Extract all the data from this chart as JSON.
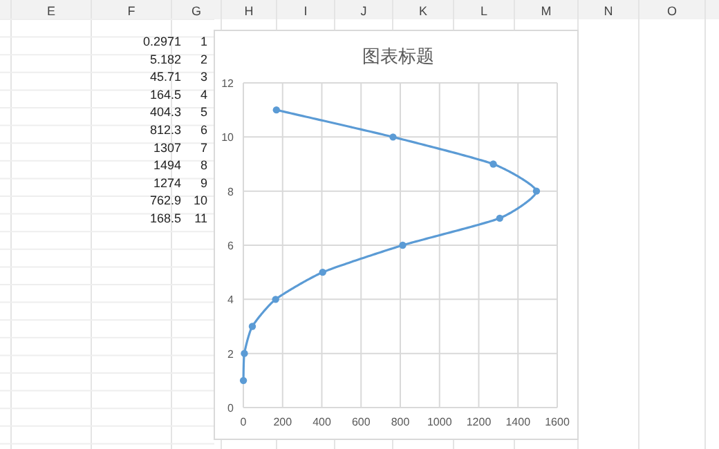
{
  "chart_data": {
    "type": "line",
    "title": "图表标题",
    "x": [
      0.2971,
      5.182,
      45.71,
      164.5,
      404.3,
      812.3,
      1307,
      1494,
      1274,
      762.9,
      168.5
    ],
    "series": [
      {
        "color": "#5b9bd5",
        "values": [
          1,
          2,
          3,
          4,
          5,
          6,
          7,
          8,
          9,
          10,
          11
        ]
      }
    ],
    "marker": "circle",
    "line_style": "solid",
    "xlim": [
      0,
      1600
    ],
    "xticks": [
      0,
      200,
      400,
      600,
      800,
      1000,
      1200,
      1400,
      1600
    ],
    "ylim": [
      0,
      12
    ],
    "yticks": [
      0,
      2,
      4,
      6,
      8,
      10,
      12
    ],
    "grid": true,
    "annotations": [
      "E",
      "F",
      "G",
      "H",
      "I",
      "J",
      "K",
      "L",
      "M",
      "N",
      "O",
      "0.2971",
      "1",
      "5.182",
      "2",
      "45.71",
      "3",
      "164.5",
      "4",
      "404.3",
      "5",
      "812.3",
      "6",
      "1307",
      "7",
      "1494",
      "8",
      "1274",
      "9",
      "762.9",
      "10",
      "168.5",
      "11"
    ]
  }
}
